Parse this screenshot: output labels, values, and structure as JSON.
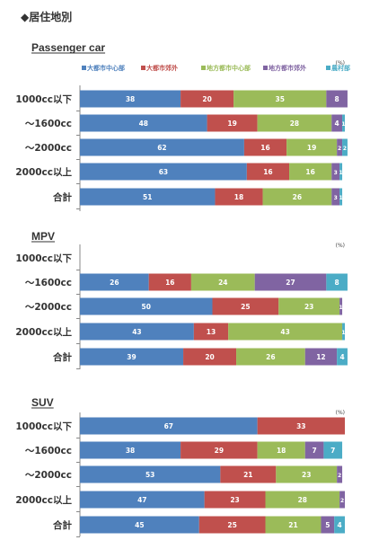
{
  "section_heading": "◆居住地別",
  "colors": {
    "大都市中心部": "#4f81bd",
    "大都市郊外": "#c0504d",
    "地方都市中心部": "#9bbb59",
    "地方都市郊外": "#8064a2",
    "農村部": "#4bacc6"
  },
  "chart_data": [
    {
      "type": "bar",
      "orientation": "horizontal",
      "stacked": true,
      "title": "Passenger car",
      "unit": "(%)",
      "legend": [
        "大都市中心部",
        "大都市郊外",
        "地方都市中心部",
        "地方都市郊外",
        "農村部"
      ],
      "legend_position": "top",
      "categories": [
        "1000cc以下",
        "～1600cc",
        "～2000cc",
        "2000cc以上",
        "合計"
      ],
      "series": [
        {
          "name": "大都市中心部",
          "values": [
            38,
            48,
            62,
            63,
            51
          ]
        },
        {
          "name": "大都市郊外",
          "values": [
            20,
            19,
            16,
            16,
            18
          ]
        },
        {
          "name": "地方都市中心部",
          "values": [
            35,
            28,
            19,
            16,
            26
          ]
        },
        {
          "name": "地方都市郊外",
          "values": [
            8,
            4,
            2,
            3,
            3
          ]
        },
        {
          "name": "農村部",
          "values": [
            0,
            1,
            2,
            1,
            1
          ]
        }
      ],
      "xlim": [
        0,
        100
      ]
    },
    {
      "type": "bar",
      "orientation": "horizontal",
      "stacked": true,
      "title": "MPV",
      "unit": "(%)",
      "categories": [
        "1000cc以下",
        "～1600cc",
        "～2000cc",
        "2000cc以上",
        "合計"
      ],
      "series": [
        {
          "name": "大都市中心部",
          "values": [
            0,
            26,
            50,
            43,
            39
          ]
        },
        {
          "name": "大都市郊外",
          "values": [
            0,
            16,
            25,
            13,
            20
          ]
        },
        {
          "name": "地方都市中心部",
          "values": [
            0,
            24,
            23,
            43,
            26
          ]
        },
        {
          "name": "地方都市郊外",
          "values": [
            0,
            27,
            1,
            0,
            12
          ]
        },
        {
          "name": "農村部",
          "values": [
            0,
            8,
            0,
            1,
            4
          ]
        }
      ],
      "xlim": [
        0,
        100
      ]
    },
    {
      "type": "bar",
      "orientation": "horizontal",
      "stacked": true,
      "title": "SUV",
      "unit": "(%)",
      "categories": [
        "1000cc以下",
        "～1600cc",
        "～2000cc",
        "2000cc以上",
        "合計"
      ],
      "series": [
        {
          "name": "大都市中心部",
          "values": [
            67,
            38,
            53,
            47,
            45
          ]
        },
        {
          "name": "大都市郊外",
          "values": [
            33,
            29,
            21,
            23,
            25
          ]
        },
        {
          "name": "地方都市中心部",
          "values": [
            0,
            18,
            23,
            28,
            21
          ]
        },
        {
          "name": "地方都市郊外",
          "values": [
            0,
            7,
            2,
            2,
            5
          ]
        },
        {
          "name": "農村部",
          "values": [
            0,
            7,
            0,
            0,
            4
          ]
        }
      ],
      "xlim": [
        0,
        100
      ]
    }
  ]
}
